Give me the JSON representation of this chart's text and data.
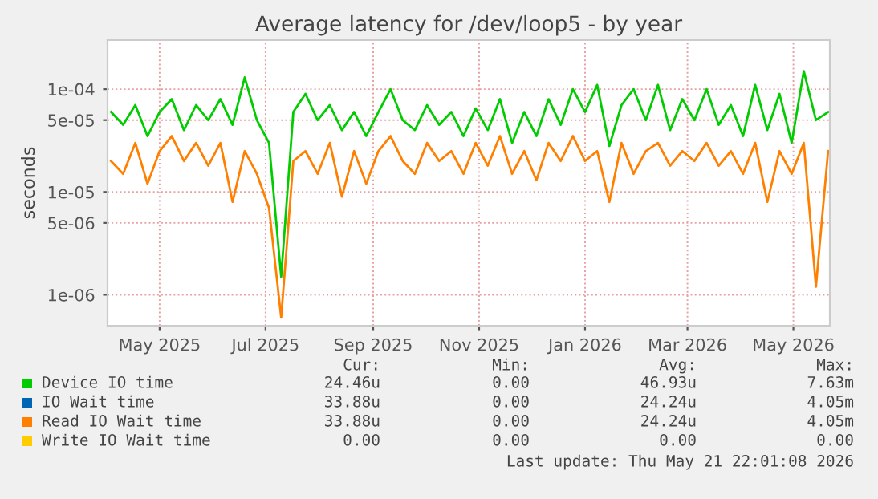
{
  "chart_data": {
    "type": "line",
    "title": "Average latency for /dev/loop5 - by year",
    "ylabel": "seconds",
    "log": "y",
    "x": [
      "2025-04-03",
      "2025-04-10",
      "2025-04-17",
      "2025-04-24",
      "2025-05-01",
      "2025-05-08",
      "2025-05-15",
      "2025-05-22",
      "2025-05-29",
      "2025-06-05",
      "2025-06-12",
      "2025-06-19",
      "2025-06-26",
      "2025-07-03",
      "2025-07-10",
      "2025-07-17",
      "2025-07-24",
      "2025-07-31",
      "2025-08-07",
      "2025-08-14",
      "2025-08-21",
      "2025-08-28",
      "2025-09-04",
      "2025-09-11",
      "2025-09-18",
      "2025-09-25",
      "2025-10-02",
      "2025-10-09",
      "2025-10-16",
      "2025-10-23",
      "2025-10-30",
      "2025-11-06",
      "2025-11-13",
      "2025-11-20",
      "2025-11-27",
      "2025-12-04",
      "2025-12-11",
      "2025-12-18",
      "2025-12-25",
      "2026-01-01",
      "2026-01-08",
      "2026-01-15",
      "2026-01-22",
      "2026-01-29",
      "2026-02-05",
      "2026-02-12",
      "2026-02-19",
      "2026-02-26",
      "2026-03-05",
      "2026-03-12",
      "2026-03-19",
      "2026-03-26",
      "2026-04-02",
      "2026-04-09",
      "2026-04-16",
      "2026-04-23",
      "2026-04-30",
      "2026-05-07",
      "2026-05-14",
      "2026-05-21"
    ],
    "xlim": [
      "2025-04-01",
      "2026-05-22"
    ],
    "xticks": [
      {
        "value": "2025-05-01",
        "label": "May 2025"
      },
      {
        "value": "2025-07-01",
        "label": "Jul 2025"
      },
      {
        "value": "2025-09-01",
        "label": "Sep 2025"
      },
      {
        "value": "2025-11-01",
        "label": "Nov 2025"
      },
      {
        "value": "2026-01-01",
        "label": "Jan 2026"
      },
      {
        "value": "2026-03-01",
        "label": "Mar 2026"
      },
      {
        "value": "2026-05-01",
        "label": "May 2026"
      }
    ],
    "ylim": [
      5e-07,
      0.0003
    ],
    "yticks": [
      {
        "value": 1e-06,
        "label": "1e-06"
      },
      {
        "value": 5e-06,
        "label": "5e-06"
      },
      {
        "value": 1e-05,
        "label": "1e-05"
      },
      {
        "value": 5e-05,
        "label": "5e-05"
      },
      {
        "value": 0.0001,
        "label": "1e-04"
      }
    ],
    "grid": true,
    "legend": "bottom",
    "series": [
      {
        "name": "Device IO time",
        "color": "#00cc00",
        "values": [
          6e-05,
          4.5e-05,
          7e-05,
          3.5e-05,
          6e-05,
          8e-05,
          4e-05,
          7e-05,
          5e-05,
          8e-05,
          4.5e-05,
          0.00013,
          5e-05,
          3e-05,
          1.5e-06,
          6e-05,
          9e-05,
          5e-05,
          7e-05,
          4e-05,
          6e-05,
          3.5e-05,
          6e-05,
          0.0001,
          5e-05,
          4e-05,
          7e-05,
          4.5e-05,
          6e-05,
          3.5e-05,
          6.5e-05,
          4e-05,
          8e-05,
          3e-05,
          6e-05,
          3.5e-05,
          8e-05,
          4.5e-05,
          0.0001,
          6e-05,
          0.00011,
          2.8e-05,
          7e-05,
          0.0001,
          5e-05,
          0.00011,
          4e-05,
          8e-05,
          5e-05,
          0.0001,
          4.5e-05,
          7e-05,
          3.5e-05,
          0.00011,
          4e-05,
          9e-05,
          3e-05,
          0.00015,
          5e-05,
          6e-05
        ]
      },
      {
        "name": "IO Wait time",
        "color": "#0066b3",
        "values": [
          null,
          null,
          null,
          null,
          null,
          null,
          null,
          null,
          null,
          null,
          null,
          null,
          null,
          null,
          null,
          null,
          null,
          null,
          null,
          null,
          null,
          null,
          null,
          null,
          null,
          null,
          null,
          null,
          null,
          null,
          null,
          null,
          null,
          null,
          null,
          null,
          null,
          null,
          null,
          null,
          null,
          null,
          null,
          null,
          null,
          null,
          null,
          null,
          null,
          null,
          null,
          null,
          null,
          null,
          null,
          null,
          null,
          null,
          null,
          null
        ]
      },
      {
        "name": "Read IO Wait time",
        "color": "#ff8000",
        "values": [
          2e-05,
          1.5e-05,
          3e-05,
          1.2e-05,
          2.5e-05,
          3.5e-05,
          2e-05,
          3e-05,
          1.8e-05,
          3e-05,
          8e-06,
          2.5e-05,
          1.5e-05,
          7e-06,
          6e-07,
          2e-05,
          2.5e-05,
          1.5e-05,
          3e-05,
          9e-06,
          2.5e-05,
          1.2e-05,
          2.5e-05,
          3.5e-05,
          2e-05,
          1.5e-05,
          3e-05,
          2e-05,
          2.5e-05,
          1.5e-05,
          3e-05,
          1.8e-05,
          3.5e-05,
          1.5e-05,
          2.5e-05,
          1.3e-05,
          3e-05,
          2e-05,
          3.5e-05,
          2e-05,
          2.5e-05,
          8e-06,
          3e-05,
          1.5e-05,
          2.5e-05,
          3e-05,
          1.8e-05,
          2.5e-05,
          2e-05,
          3e-05,
          1.8e-05,
          2.5e-05,
          1.5e-05,
          3e-05,
          8e-06,
          2.5e-05,
          1.5e-05,
          3e-05,
          1.2e-06,
          2.5e-05
        ]
      },
      {
        "name": "Write IO Wait time",
        "color": "#ffcc00",
        "values": [
          null,
          null,
          null,
          null,
          null,
          null,
          null,
          null,
          null,
          null,
          null,
          null,
          null,
          null,
          null,
          null,
          null,
          null,
          null,
          null,
          null,
          null,
          null,
          null,
          null,
          null,
          null,
          null,
          null,
          null,
          null,
          null,
          null,
          null,
          null,
          null,
          null,
          null,
          null,
          null,
          null,
          null,
          null,
          null,
          null,
          null,
          null,
          null,
          null,
          null,
          null,
          null,
          null,
          null,
          null,
          null,
          null,
          null,
          null,
          null
        ]
      }
    ],
    "annotations": [
      "Cur:",
      "Min:",
      "Avg:",
      "Max:",
      "24.46u",
      "0.00",
      "46.93u",
      "7.63m",
      "33.88u",
      "0.00",
      "24.24u",
      "4.05m",
      "33.88u",
      "0.00",
      "24.24u",
      "4.05m",
      "0.00",
      "0.00",
      "0.00",
      "0.00",
      "Last update: Thu May 21 22:01:08 2026"
    ]
  }
}
